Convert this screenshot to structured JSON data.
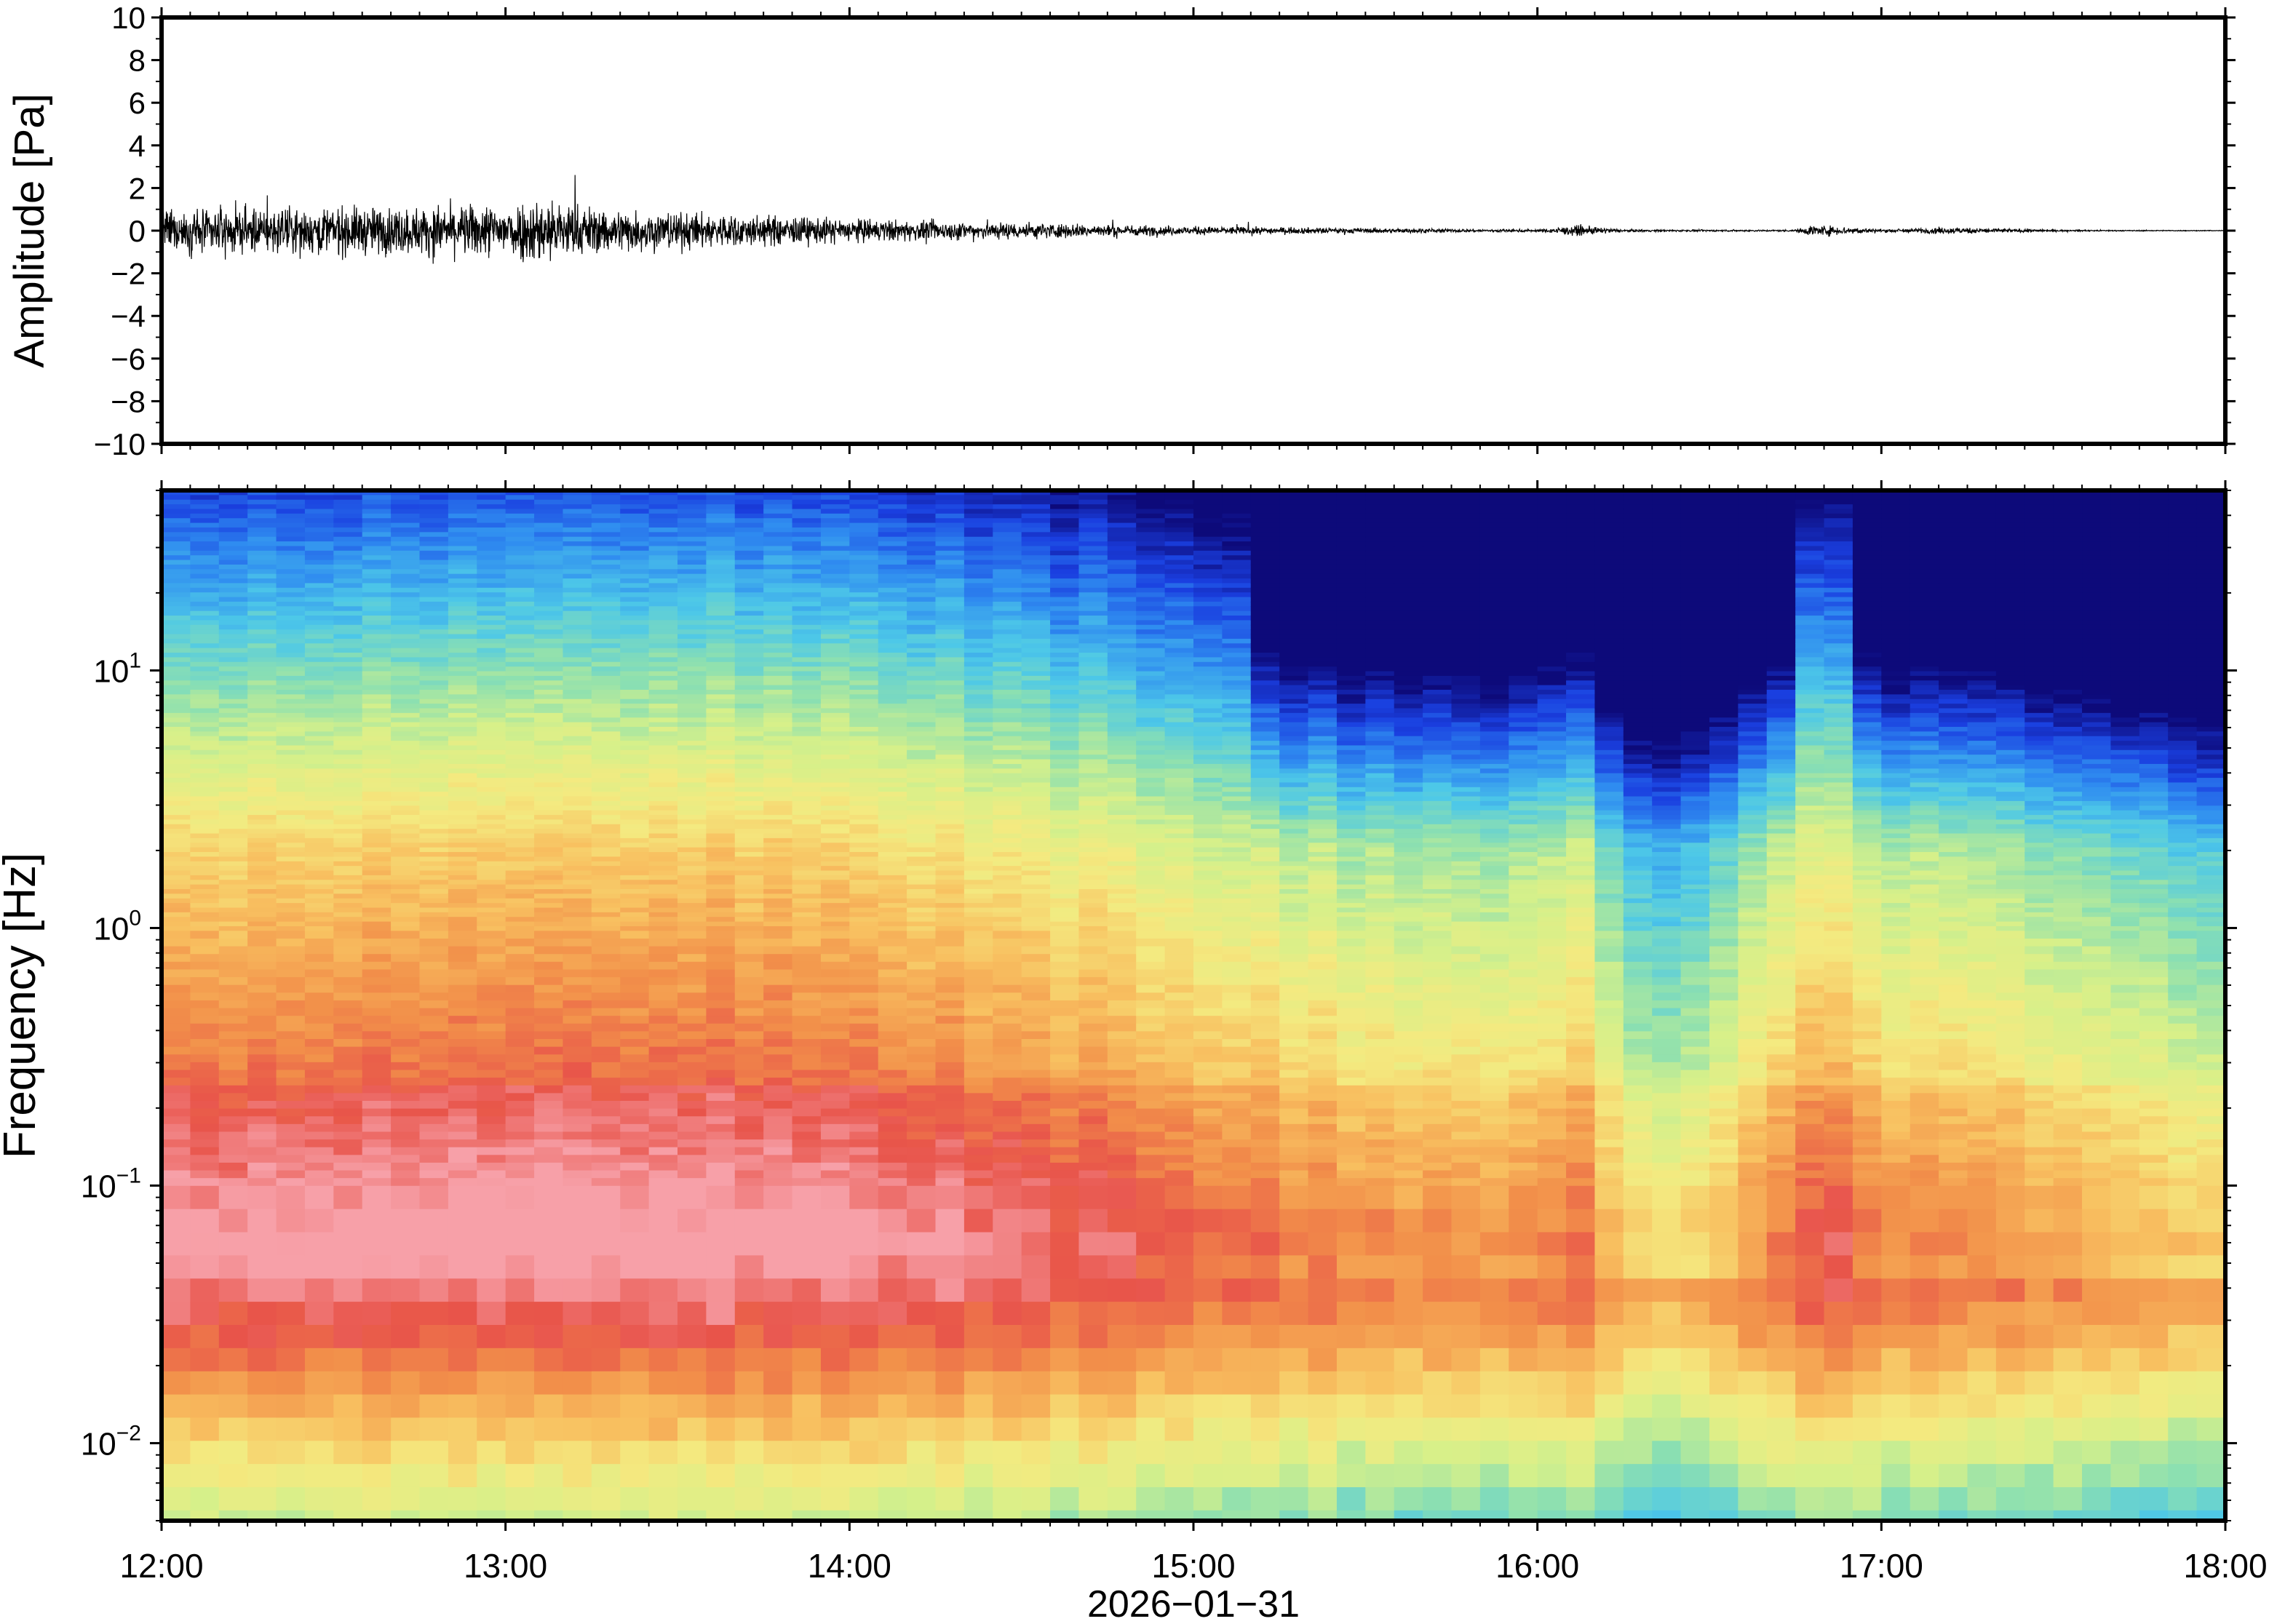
{
  "chart_data": [
    {
      "type": "line",
      "panel": "waveform",
      "title": "",
      "ylabel": "Amplitude [Pa]",
      "xlabel": "",
      "ylim": [
        -10,
        10
      ],
      "yticks": [
        {
          "value": 10,
          "label": "10"
        },
        {
          "value": 8,
          "label": "8"
        },
        {
          "value": 6,
          "label": "6"
        },
        {
          "value": 4,
          "label": "4"
        },
        {
          "value": 2,
          "label": "2"
        },
        {
          "value": 0,
          "label": "0"
        },
        {
          "value": -2,
          "label": "−2"
        },
        {
          "value": -4,
          "label": "−4"
        },
        {
          "value": -6,
          "label": "−6"
        },
        {
          "value": -8,
          "label": "−8"
        },
        {
          "value": -10,
          "label": "−10"
        }
      ],
      "series": [
        {
          "color": "#000000",
          "envelope_x_hours": [
            12.0,
            12.25,
            12.5,
            12.75,
            13.0,
            13.1,
            13.25,
            13.5,
            13.75,
            14.0,
            14.25,
            14.5,
            14.75,
            15.0,
            15.25,
            15.5,
            15.75,
            16.0,
            16.12,
            16.25,
            16.5,
            16.75,
            16.8,
            17.0,
            17.2,
            17.5,
            17.75,
            18.0
          ],
          "envelope_amplitude_pa": [
            1.2,
            1.3,
            1.4,
            1.4,
            1.6,
            2.0,
            1.4,
            1.1,
            0.9,
            0.7,
            0.55,
            0.5,
            0.35,
            0.25,
            0.2,
            0.15,
            0.1,
            0.08,
            0.3,
            0.07,
            0.05,
            0.05,
            0.35,
            0.1,
            0.2,
            0.05,
            0.03,
            0.02
          ]
        }
      ]
    },
    {
      "type": "heatmap",
      "panel": "spectrogram",
      "title": "",
      "ylabel": "Frequency [Hz]",
      "xlabel": "2026−01−31",
      "y_scale": "log",
      "ylim": [
        0.005,
        50
      ],
      "yticks": [
        {
          "value": 10,
          "base": "10",
          "exp": "1"
        },
        {
          "value": 1,
          "base": "10",
          "exp": "0"
        },
        {
          "value": 0.1,
          "base": "10",
          "exp": "−1"
        },
        {
          "value": 0.01,
          "base": "10",
          "exp": "−2"
        }
      ],
      "xlim": [
        "12:00",
        "18:00"
      ],
      "xticks": [
        "12:00",
        "13:00",
        "14:00",
        "15:00",
        "16:00",
        "17:00",
        "18:00"
      ],
      "colormap": [
        "#0d0a7a",
        "#1a3fe0",
        "#2f8cf0",
        "#4dc8e8",
        "#8de0b0",
        "#d6f08a",
        "#f4ea80",
        "#f8c060",
        "#f2904a",
        "#e8544a",
        "#f7a0a8"
      ],
      "background_color": "#0b0a6e",
      "level_scale": "0 = deep blue (low power), 1 = pink (high power)",
      "activity_profile": {
        "x_hours": [
          12.0,
          12.5,
          13.0,
          13.5,
          14.0,
          14.5,
          15.0,
          15.5,
          16.0,
          16.1,
          16.3,
          16.5,
          16.75,
          16.85,
          17.0,
          17.25,
          17.5,
          18.0
        ],
        "relative_level": [
          0.0,
          0.02,
          0.05,
          0.03,
          0.0,
          -0.05,
          -0.12,
          -0.2,
          -0.22,
          -0.12,
          -0.38,
          -0.36,
          -0.14,
          -0.1,
          -0.2,
          -0.17,
          -0.26,
          -0.32
        ]
      }
    }
  ]
}
